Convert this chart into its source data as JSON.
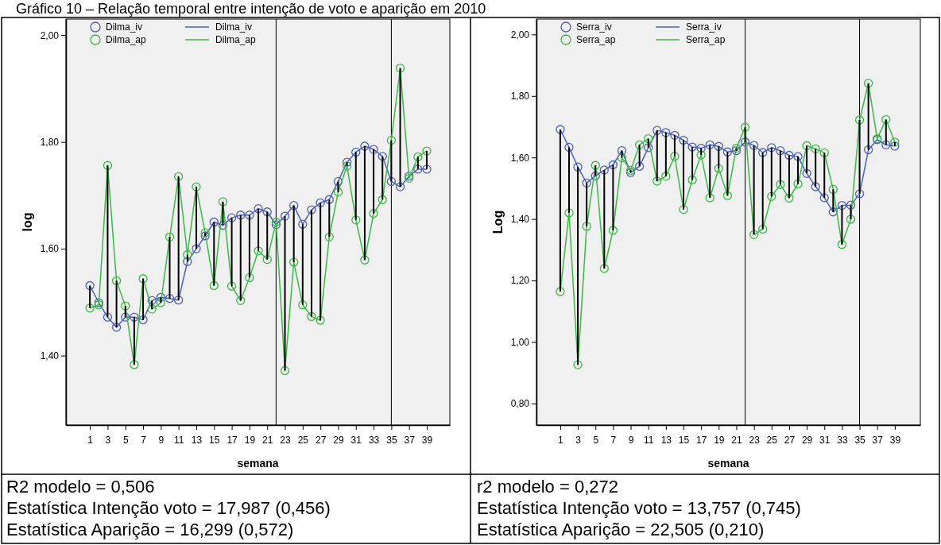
{
  "chart_data": [
    {
      "type": "line",
      "title": "Gráfico 10 – Relação temporal entre intenção de voto e aparição em 2010",
      "xlabel": "semana",
      "ylabel": "log",
      "marker": "circle",
      "legend": "top left",
      "x": [
        1,
        2,
        3,
        4,
        5,
        6,
        7,
        8,
        9,
        10,
        11,
        12,
        13,
        14,
        15,
        16,
        17,
        18,
        19,
        20,
        21,
        22,
        23,
        24,
        25,
        26,
        27,
        28,
        29,
        30,
        31,
        32,
        33,
        34,
        35,
        36,
        37,
        38,
        39
      ],
      "xlim": [
        -1.7,
        41.6
      ],
      "xticks": [
        1,
        3,
        5,
        7,
        9,
        11,
        13,
        15,
        17,
        19,
        21,
        23,
        25,
        27,
        29,
        31,
        33,
        35,
        37,
        39
      ],
      "ylim": [
        1.27,
        2.03
      ],
      "yticks": [
        {
          "value": 1.4,
          "label": "1,40"
        },
        {
          "value": 1.6,
          "label": "1,60"
        },
        {
          "value": 1.8,
          "label": "1,80"
        },
        {
          "value": 2.0,
          "label": "2,00"
        }
      ],
      "series": [
        {
          "name": "Dilma_iv",
          "color": "#4e61b5",
          "errors": [
            [
              1.489,
              1.531
            ],
            null,
            [
              1.472,
              1.756
            ],
            [
              1.453,
              1.54
            ],
            [
              1.472,
              1.493
            ],
            [
              1.383,
              1.472
            ],
            [
              1.467,
              1.544
            ],
            [
              1.487,
              1.503
            ],
            [
              1.499,
              1.509
            ],
            [
              1.507,
              1.622
            ],
            [
              1.504,
              1.735
            ],
            [
              1.576,
              1.589
            ],
            [
              1.6,
              1.716
            ],
            [
              1.624,
              1.63
            ],
            [
              1.531,
              1.65
            ],
            [
              1.644,
              1.688
            ],
            [
              1.53,
              1.658
            ],
            [
              1.503,
              1.663
            ],
            [
              1.546,
              1.663
            ],
            [
              1.596,
              1.675
            ],
            [
              1.58,
              1.669
            ],
            null,
            [
              1.372,
              1.661
            ],
            [
              1.575,
              1.681
            ],
            [
              1.495,
              1.646
            ],
            [
              1.473,
              1.673
            ],
            [
              1.466,
              1.686
            ],
            [
              1.622,
              1.692
            ],
            [
              1.706,
              1.726
            ],
            [
              1.755,
              1.762
            ],
            [
              1.654,
              1.781
            ],
            [
              1.579,
              1.792
            ],
            [
              1.666,
              1.786
            ],
            [
              1.692,
              1.773
            ],
            [
              1.726,
              1.803
            ],
            [
              1.716,
              1.938
            ],
            null,
            [
              1.749,
              1.772
            ],
            [
              1.749,
              1.783
            ]
          ],
          "values": [
            1.531,
            1.499,
            1.472,
            1.453,
            1.472,
            1.472,
            1.467,
            1.503,
            1.509,
            1.507,
            1.504,
            1.576,
            1.6,
            1.624,
            1.65,
            1.644,
            1.658,
            1.663,
            1.663,
            1.675,
            1.669,
            1.645,
            1.661,
            1.681,
            1.646,
            1.673,
            1.686,
            1.692,
            1.726,
            1.762,
            1.781,
            1.792,
            1.786,
            1.773,
            1.726,
            1.716,
            1.736,
            1.749,
            1.749
          ]
        },
        {
          "name": "Dilma_ap",
          "color": "#3cb846",
          "values": [
            1.489,
            1.495,
            1.756,
            1.54,
            1.493,
            1.383,
            1.544,
            1.487,
            1.499,
            1.622,
            1.735,
            1.589,
            1.716,
            1.63,
            1.531,
            1.688,
            1.53,
            1.503,
            1.546,
            1.596,
            1.58,
            1.65,
            1.372,
            1.575,
            1.495,
            1.473,
            1.466,
            1.622,
            1.706,
            1.755,
            1.654,
            1.579,
            1.666,
            1.692,
            1.803,
            1.938,
            1.732,
            1.772,
            1.783
          ]
        }
      ],
      "ref_lines": [
        {
          "axis": "x",
          "value": 22,
          "color": "#000000"
        },
        {
          "axis": "x",
          "value": 35,
          "color": "#000000"
        }
      ],
      "annotations": [
        "R2 modelo = 0,506",
        "Estatística Intenção voto = 17,987 (0,456)",
        "Estatística Aparição = 16,299 (0,572)"
      ]
    },
    {
      "type": "line",
      "xlabel": "semana",
      "ylabel": "Log",
      "marker": "circle",
      "legend": "top left",
      "x": [
        1,
        2,
        3,
        4,
        5,
        6,
        7,
        8,
        9,
        10,
        11,
        12,
        13,
        14,
        15,
        16,
        17,
        18,
        19,
        20,
        21,
        22,
        23,
        24,
        25,
        26,
        27,
        28,
        29,
        30,
        31,
        32,
        33,
        34,
        35,
        36,
        37,
        38,
        39
      ],
      "xlim": [
        -1.7,
        41.9
      ],
      "xticks": [
        1,
        3,
        5,
        7,
        9,
        11,
        13,
        15,
        17,
        19,
        21,
        23,
        25,
        27,
        29,
        31,
        33,
        35,
        37,
        39
      ],
      "ylim": [
        0.73,
        2.05
      ],
      "yticks": [
        {
          "value": 0.8,
          "label": "0,80"
        },
        {
          "value": 1.0,
          "label": "1,00"
        },
        {
          "value": 1.2,
          "label": "1,20"
        },
        {
          "value": 1.4,
          "label": "1,40"
        },
        {
          "value": 1.6,
          "label": "1,60"
        },
        {
          "value": 1.8,
          "label": "1,80"
        },
        {
          "value": 2.0,
          "label": "2,00"
        }
      ],
      "series": [
        {
          "name": "Serra_iv",
          "color": "#4e61b5",
          "errors": [
            [
              1.164,
              1.691
            ],
            [
              1.42,
              1.633
            ],
            [
              0.926,
              1.569
            ],
            [
              1.376,
              1.517
            ],
            [
              1.54,
              1.574
            ],
            [
              1.239,
              1.559
            ],
            [
              1.363,
              1.576
            ],
            [
              1.599,
              1.622
            ],
            [
              1.551,
              1.558
            ],
            [
              1.571,
              1.641
            ],
            [
              1.632,
              1.661
            ],
            [
              1.523,
              1.688
            ],
            [
              1.539,
              1.681
            ],
            [
              1.604,
              1.672
            ],
            [
              1.431,
              1.656
            ],
            [
              1.527,
              1.634
            ],
            [
              1.608,
              1.63
            ],
            [
              1.469,
              1.641
            ],
            [
              1.564,
              1.636
            ],
            [
              1.476,
              1.618
            ],
            [
              1.622,
              1.63
            ],
            [
              1.65,
              1.698
            ],
            [
              1.349,
              1.639
            ],
            [
              1.367,
              1.616
            ],
            [
              1.473,
              1.632
            ],
            [
              1.512,
              1.622
            ],
            [
              1.468,
              1.607
            ],
            [
              1.514,
              1.603
            ],
            [
              1.548,
              1.638
            ],
            [
              1.505,
              1.628
            ],
            [
              1.469,
              1.615
            ],
            [
              1.423,
              1.496
            ],
            [
              1.317,
              1.444
            ],
            [
              1.399,
              1.445
            ],
            [
              1.482,
              1.722
            ],
            [
              1.625,
              1.841
            ],
            null,
            [
              1.641,
              1.723
            ],
            [
              1.637,
              1.65
            ]
          ],
          "values": [
            1.691,
            1.633,
            1.569,
            1.517,
            1.54,
            1.559,
            1.576,
            1.622,
            1.551,
            1.571,
            1.632,
            1.688,
            1.681,
            1.672,
            1.656,
            1.634,
            1.63,
            1.641,
            1.636,
            1.618,
            1.622,
            1.65,
            1.639,
            1.616,
            1.632,
            1.622,
            1.607,
            1.603,
            1.548,
            1.505,
            1.469,
            1.423,
            1.444,
            1.445,
            1.482,
            1.625,
            1.658,
            1.641,
            1.637
          ]
        },
        {
          "name": "Serra_ap",
          "color": "#3cb846",
          "values": [
            1.164,
            1.42,
            0.926,
            1.376,
            1.574,
            1.239,
            1.363,
            1.599,
            1.558,
            1.641,
            1.661,
            1.523,
            1.539,
            1.604,
            1.431,
            1.527,
            1.608,
            1.469,
            1.564,
            1.476,
            1.63,
            1.698,
            1.349,
            1.367,
            1.473,
            1.512,
            1.468,
            1.514,
            1.638,
            1.628,
            1.615,
            1.496,
            1.317,
            1.399,
            1.722,
            1.841,
            1.661,
            1.723,
            1.65
          ]
        }
      ],
      "ref_lines": [
        {
          "axis": "x",
          "value": 22,
          "color": "#000000"
        },
        {
          "axis": "x",
          "value": 35,
          "color": "#000000"
        }
      ],
      "annotations": [
        "r2 modelo = 0,272",
        "Estatística Intenção voto = 13,757 (0,745)",
        "Estatística Aparição = 22,505 (0,210)"
      ]
    }
  ]
}
